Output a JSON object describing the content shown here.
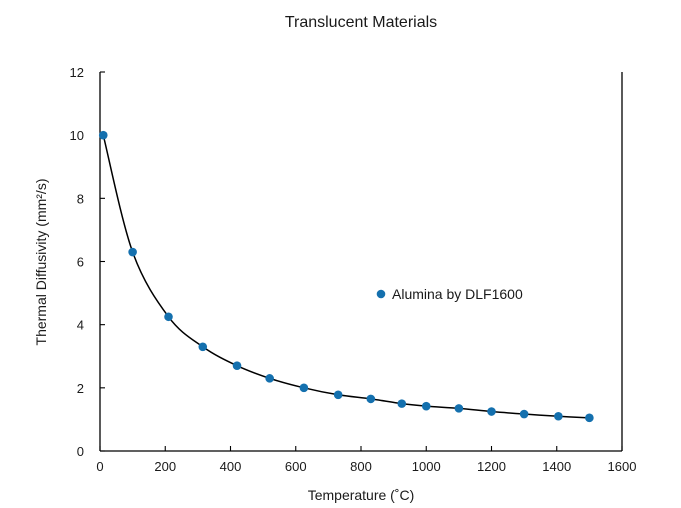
{
  "chart_data": {
    "type": "scatter",
    "title": "Translucent Materials",
    "xlabel": "Temperature (˚C)",
    "ylabel": "Thermal Diffusivity (mm²/s)",
    "xlim": [
      0,
      1600
    ],
    "ylim": [
      0,
      12
    ],
    "xticks": [
      0,
      200,
      400,
      600,
      800,
      1000,
      1200,
      1400,
      1600
    ],
    "yticks": [
      0,
      2,
      4,
      6,
      8,
      10,
      12
    ],
    "grid": false,
    "legend_position": "center-right",
    "series": [
      {
        "name": "Alumina by DLF1600",
        "color": "#1470ae",
        "marker": "circle",
        "x": [
          10,
          100,
          210,
          315,
          420,
          520,
          625,
          730,
          830,
          925,
          1000,
          1100,
          1200,
          1300,
          1405,
          1500
        ],
        "y": [
          10.0,
          6.3,
          4.25,
          3.3,
          2.7,
          2.3,
          2.0,
          1.78,
          1.65,
          1.5,
          1.42,
          1.35,
          1.25,
          1.17,
          1.1,
          1.05
        ]
      }
    ],
    "trendline": {
      "color": "#000000",
      "style": "smooth",
      "fits_series": "Alumina by DLF1600"
    }
  }
}
